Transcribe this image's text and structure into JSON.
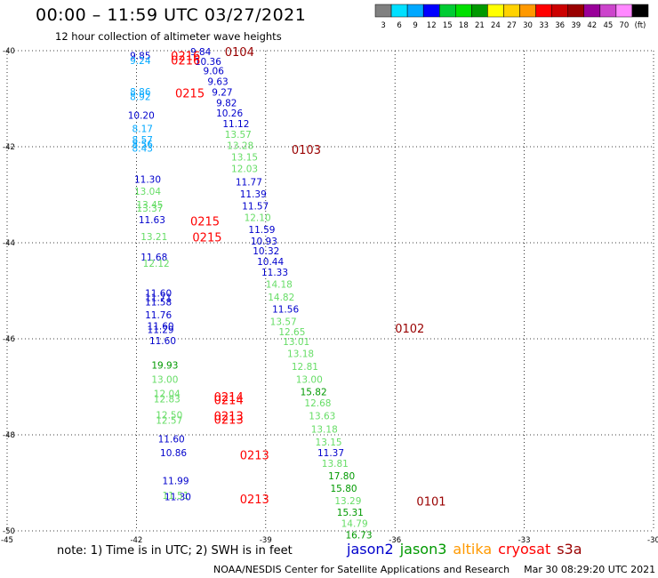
{
  "title": "00:00 – 11:59 UTC 03/27/2021",
  "subtitle": "12 hour collection of altimeter wave heights",
  "scale": {
    "colors": [
      "#808080",
      "#00e0ff",
      "#00a8ff",
      "#0000ff",
      "#00cc33",
      "#00e000",
      "#009900",
      "#ffff00",
      "#ffd200",
      "#ff9900",
      "#ff0000",
      "#cc0000",
      "#990000",
      "#990099",
      "#cc44cc",
      "#ff88ff",
      "#000000"
    ],
    "labels": [
      "3",
      "6",
      "9",
      "12",
      "15",
      "18",
      "21",
      "24",
      "27",
      "30",
      "33",
      "36",
      "39",
      "42",
      "45",
      "70",
      "(ft)"
    ]
  },
  "axes": {
    "lat_labels": [
      "-40",
      "-42",
      "-44",
      "-46",
      "-48",
      "-50"
    ],
    "lon_labels": [
      "-45",
      "-42",
      "-39",
      "-36",
      "-33",
      "-30"
    ]
  },
  "note": "note:  1) Time is in UTC;  2) SWH is in feet",
  "satellites": [
    {
      "name": "jason2",
      "color": "#0000cc"
    },
    {
      "name": "jason3",
      "color": "#009900"
    },
    {
      "name": "altika",
      "color": "#ff9900"
    },
    {
      "name": "cryosat",
      "color": "#ff0000"
    },
    {
      "name": "s3a",
      "color": "#990000"
    }
  ],
  "credit": "NOAA/NESDIS Center for Satellite Applications and Research",
  "timestamp": "Mar 30 08:29:20 UTC 2021",
  "swh_labels": [
    {
      "t": "9.84",
      "c": "#0000cc",
      "lon": -40.75,
      "lat": -40.02
    },
    {
      "t": "10.36",
      "c": "#0000cc",
      "lon": -40.65,
      "lat": -40.22
    },
    {
      "t": "9.06",
      "c": "#0000cc",
      "lon": -40.45,
      "lat": -40.42
    },
    {
      "t": "9.63",
      "c": "#0000cc",
      "lon": -40.35,
      "lat": -40.64
    },
    {
      "t": "9.27",
      "c": "#0000cc",
      "lon": -40.25,
      "lat": -40.86
    },
    {
      "t": "9.82",
      "c": "#0000cc",
      "lon": -40.15,
      "lat": -41.08
    },
    {
      "t": "10.26",
      "c": "#0000cc",
      "lon": -40.15,
      "lat": -41.3
    },
    {
      "t": "11.12",
      "c": "#0000cc",
      "lon": -40.0,
      "lat": -41.52
    },
    {
      "t": "13.57",
      "c": "#66dd66",
      "lon": -39.95,
      "lat": -41.74
    },
    {
      "t": "13.28",
      "c": "#66dd66",
      "lon": -39.9,
      "lat": -41.97
    },
    {
      "t": "13.15",
      "c": "#66dd66",
      "lon": -39.8,
      "lat": -42.21
    },
    {
      "t": "12.03",
      "c": "#66dd66",
      "lon": -39.8,
      "lat": -42.45
    },
    {
      "t": "11.77",
      "c": "#0000cc",
      "lon": -39.7,
      "lat": -42.73
    },
    {
      "t": "11.39",
      "c": "#0000cc",
      "lon": -39.6,
      "lat": -42.98
    },
    {
      "t": "11.57",
      "c": "#0000cc",
      "lon": -39.55,
      "lat": -43.23
    },
    {
      "t": "12.10",
      "c": "#66dd66",
      "lon": -39.5,
      "lat": -43.47
    },
    {
      "t": "11.59",
      "c": "#0000cc",
      "lon": -39.4,
      "lat": -43.72
    },
    {
      "t": "10.93",
      "c": "#0000cc",
      "lon": -39.35,
      "lat": -43.96
    },
    {
      "t": "10.32",
      "c": "#0000cc",
      "lon": -39.3,
      "lat": -44.17
    },
    {
      "t": "10.44",
      "c": "#0000cc",
      "lon": -39.2,
      "lat": -44.39
    },
    {
      "t": "11.33",
      "c": "#0000cc",
      "lon": -39.1,
      "lat": -44.61
    },
    {
      "t": "14.18",
      "c": "#66dd66",
      "lon": -39.0,
      "lat": -44.86
    },
    {
      "t": "14.82",
      "c": "#66dd66",
      "lon": -38.95,
      "lat": -45.13
    },
    {
      "t": "11.56",
      "c": "#0000cc",
      "lon": -38.85,
      "lat": -45.38
    },
    {
      "t": "13.57",
      "c": "#66dd66",
      "lon": -38.9,
      "lat": -45.64
    },
    {
      "t": "12.65",
      "c": "#66dd66",
      "lon": -38.7,
      "lat": -45.85
    },
    {
      "t": "13.01",
      "c": "#66dd66",
      "lon": -38.6,
      "lat": -46.06
    },
    {
      "t": "13.18",
      "c": "#66dd66",
      "lon": -38.5,
      "lat": -46.31
    },
    {
      "t": "12.81",
      "c": "#66dd66",
      "lon": -38.4,
      "lat": -46.57
    },
    {
      "t": "13.00",
      "c": "#66dd66",
      "lon": -38.3,
      "lat": -46.84
    },
    {
      "t": "15.82",
      "c": "#009900",
      "lon": -38.2,
      "lat": -47.1
    },
    {
      "t": "12.68",
      "c": "#66dd66",
      "lon": -38.1,
      "lat": -47.33
    },
    {
      "t": "13.63",
      "c": "#66dd66",
      "lon": -38.0,
      "lat": -47.6
    },
    {
      "t": "13.18",
      "c": "#66dd66",
      "lon": -37.95,
      "lat": -47.88
    },
    {
      "t": "13.15",
      "c": "#66dd66",
      "lon": -37.85,
      "lat": -48.15
    },
    {
      "t": "11.37",
      "c": "#0000cc",
      "lon": -37.8,
      "lat": -48.37
    },
    {
      "t": "13.81",
      "c": "#66dd66",
      "lon": -37.7,
      "lat": -48.59
    },
    {
      "t": "17.80",
      "c": "#009900",
      "lon": -37.55,
      "lat": -48.85
    },
    {
      "t": "15.80",
      "c": "#009900",
      "lon": -37.5,
      "lat": -49.11
    },
    {
      "t": "13.29",
      "c": "#66dd66",
      "lon": -37.4,
      "lat": -49.37
    },
    {
      "t": "15.31",
      "c": "#009900",
      "lon": -37.35,
      "lat": -49.61
    },
    {
      "t": "14.79",
      "c": "#66dd66",
      "lon": -37.25,
      "lat": -49.84
    },
    {
      "t": "16.73",
      "c": "#009900",
      "lon": -37.15,
      "lat": -50.08
    },
    {
      "t": "9.85",
      "c": "#0000cc",
      "lon": -42.15,
      "lat": -40.1
    },
    {
      "t": "9.24",
      "c": "#00a8ff",
      "lon": -42.15,
      "lat": -40.2
    },
    {
      "t": "8.86",
      "c": "#00a8ff",
      "lon": -42.15,
      "lat": -40.85
    },
    {
      "t": "8.92",
      "c": "#00a8ff",
      "lon": -42.15,
      "lat": -40.95
    },
    {
      "t": "10.20",
      "c": "#0000cc",
      "lon": -42.2,
      "lat": -41.34
    },
    {
      "t": "8.17",
      "c": "#00a8ff",
      "lon": -42.1,
      "lat": -41.62
    },
    {
      "t": "8.57",
      "c": "#00a8ff",
      "lon": -42.1,
      "lat": -41.85
    },
    {
      "t": "8.56",
      "c": "#00a8ff",
      "lon": -42.1,
      "lat": -41.94
    },
    {
      "t": "8.43",
      "c": "#00a8ff",
      "lon": -42.1,
      "lat": -42.03
    },
    {
      "t": "11.30",
      "c": "#0000cc",
      "lon": -42.05,
      "lat": -42.68
    },
    {
      "t": "13.04",
      "c": "#66dd66",
      "lon": -42.05,
      "lat": -42.93
    },
    {
      "t": "13.45",
      "c": "#66dd66",
      "lon": -42.0,
      "lat": -43.2
    },
    {
      "t": "13.37",
      "c": "#66dd66",
      "lon": -42.0,
      "lat": -43.28
    },
    {
      "t": "11.63",
      "c": "#0000cc",
      "lon": -41.95,
      "lat": -43.52
    },
    {
      "t": "13.21",
      "c": "#66dd66",
      "lon": -41.9,
      "lat": -43.87
    },
    {
      "t": "11.68",
      "c": "#0000cc",
      "lon": -41.9,
      "lat": -44.3
    },
    {
      "t": "12.12",
      "c": "#66dd66",
      "lon": -41.85,
      "lat": -44.43
    },
    {
      "t": "11.60",
      "c": "#0000cc",
      "lon": -41.8,
      "lat": -45.05
    },
    {
      "t": "11.71",
      "c": "#0000cc",
      "lon": -41.8,
      "lat": -45.14
    },
    {
      "t": "11.58",
      "c": "#0000cc",
      "lon": -41.8,
      "lat": -45.23
    },
    {
      "t": "11.76",
      "c": "#0000cc",
      "lon": -41.8,
      "lat": -45.5
    },
    {
      "t": "11.60",
      "c": "#0000cc",
      "lon": -41.75,
      "lat": -45.73
    },
    {
      "t": "11.29",
      "c": "#0000cc",
      "lon": -41.75,
      "lat": -45.81
    },
    {
      "t": "11.60",
      "c": "#0000cc",
      "lon": -41.7,
      "lat": -46.04
    },
    {
      "t": "19.93",
      "c": "#009900",
      "lon": -41.65,
      "lat": -46.55
    },
    {
      "t": "13.00",
      "c": "#66dd66",
      "lon": -41.65,
      "lat": -46.84
    },
    {
      "t": "12.04",
      "c": "#66dd66",
      "lon": -41.6,
      "lat": -47.14
    },
    {
      "t": "12.83",
      "c": "#66dd66",
      "lon": -41.6,
      "lat": -47.25
    },
    {
      "t": "12.50",
      "c": "#66dd66",
      "lon": -41.55,
      "lat": -47.58
    },
    {
      "t": "12.57",
      "c": "#66dd66",
      "lon": -41.55,
      "lat": -47.69
    },
    {
      "t": "11.60",
      "c": "#0000cc",
      "lon": -41.5,
      "lat": -48.08
    },
    {
      "t": "10.86",
      "c": "#0000cc",
      "lon": -41.45,
      "lat": -48.37
    },
    {
      "t": "11.99",
      "c": "#0000cc",
      "lon": -41.4,
      "lat": -48.95
    },
    {
      "t": "11.51",
      "c": "#66dd66",
      "lon": -41.4,
      "lat": -49.26
    },
    {
      "t": "11.30",
      "c": "#0000cc",
      "lon": -41.35,
      "lat": -49.29
    }
  ],
  "pass_labels": [
    {
      "t": "0104",
      "c": "#990000",
      "lon": -39.95,
      "lat": -40.02
    },
    {
      "t": "0103",
      "c": "#990000",
      "lon": -38.4,
      "lat": -42.06
    },
    {
      "t": "0102",
      "c": "#990000",
      "lon": -36.0,
      "lat": -45.78
    },
    {
      "t": "0101",
      "c": "#990000",
      "lon": -35.5,
      "lat": -49.38
    },
    {
      "t": "0216",
      "c": "#ff0000",
      "lon": -41.2,
      "lat": -40.1
    },
    {
      "t": "0216",
      "c": "#ff0000",
      "lon": -41.2,
      "lat": -40.19
    },
    {
      "t": "0215",
      "c": "#ff0000",
      "lon": -41.1,
      "lat": -40.88
    },
    {
      "t": "0215",
      "c": "#ff0000",
      "lon": -40.75,
      "lat": -43.55
    },
    {
      "t": "0215",
      "c": "#ff0000",
      "lon": -40.7,
      "lat": -43.88
    },
    {
      "t": "0214",
      "c": "#ff0000",
      "lon": -40.2,
      "lat": -47.2
    },
    {
      "t": "0214",
      "c": "#ff0000",
      "lon": -40.2,
      "lat": -47.27
    },
    {
      "t": "0213",
      "c": "#ff0000",
      "lon": -40.2,
      "lat": -47.6
    },
    {
      "t": "0213",
      "c": "#ff0000",
      "lon": -40.2,
      "lat": -47.68
    },
    {
      "t": "0213",
      "c": "#ff0000",
      "lon": -39.6,
      "lat": -48.42
    },
    {
      "t": "0213",
      "c": "#ff0000",
      "lon": -39.6,
      "lat": -49.33
    }
  ]
}
